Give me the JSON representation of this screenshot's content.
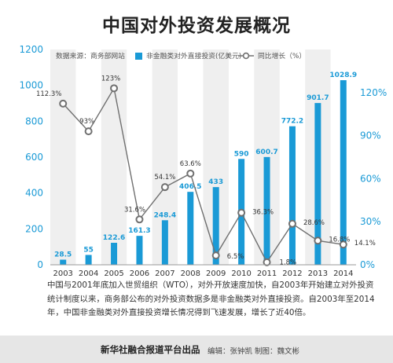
{
  "title": "中国对外投资发展概况",
  "colors": {
    "bar": "#1a9ad6",
    "line": "#707070",
    "marker_fill": "#ffffff",
    "y_left_tick": "#1a9ad6",
    "y_right_tick": "#1a9ad6",
    "band": "#efefef",
    "footer_bg": "#e6e6e6"
  },
  "chart_data": {
    "type": "bar",
    "categories": [
      "2003",
      "2004",
      "2005",
      "2006",
      "2007",
      "2008",
      "2009",
      "2010",
      "2011",
      "2012",
      "2013",
      "2014"
    ],
    "series": [
      {
        "name": "非金融类对外直接投资(亿美元)",
        "type": "bar",
        "axis": "left",
        "values": [
          28.5,
          55,
          122.6,
          161.3,
          248.4,
          406.5,
          433,
          590,
          600.7,
          772.2,
          901.7,
          1028.9
        ],
        "labels": [
          "28.5",
          "55",
          "122.6",
          "161.3",
          "248.4",
          "406.5",
          "433",
          "590",
          "600.7",
          "772.2",
          "901.7",
          "1028.9"
        ]
      },
      {
        "name": "同比增长（%）",
        "type": "line",
        "axis": "right",
        "values": [
          112.3,
          93,
          123,
          31.6,
          54.1,
          63.6,
          6.5,
          36.3,
          1.8,
          28.6,
          16.8,
          14.1
        ],
        "labels": [
          "112.3%",
          "93%",
          "123%",
          "31.6%",
          "54.1%",
          "63.6%",
          "6.5%",
          "36.3%",
          "1.8%",
          "28.6%",
          "16.8%",
          "14.1%"
        ]
      }
    ],
    "y_left": {
      "min": 0,
      "max": 1200,
      "ticks": [
        "0",
        "200",
        "400",
        "600",
        "800",
        "1000",
        "1200"
      ]
    },
    "y_right": {
      "min": 0,
      "max": 150,
      "ticks": [
        "0%",
        "30%",
        "60%",
        "90%",
        "120%"
      ]
    },
    "legend": {
      "source": "数据来源：商务部网站",
      "bar_label": "非金融类对外直接投资(亿美元)",
      "line_label": "同比增长（%）",
      "placement": "top"
    },
    "grid": false,
    "alternating_bands": true
  },
  "description": "中国与2001年底加入世贸组织（WTO），对外开放速度加快，自2003年开始建立对外投资统计制度以来，商务部公布的对外投资数据多是非金融类对外直接投资。自2003年至2014年，中国非金融类对外直接投资增长情况得到飞速发展，增长了近40倍。",
  "footer": {
    "source": "新华社融合报道平台出品",
    "credits": "编辑：张钟凯    制图：魏文彬"
  }
}
